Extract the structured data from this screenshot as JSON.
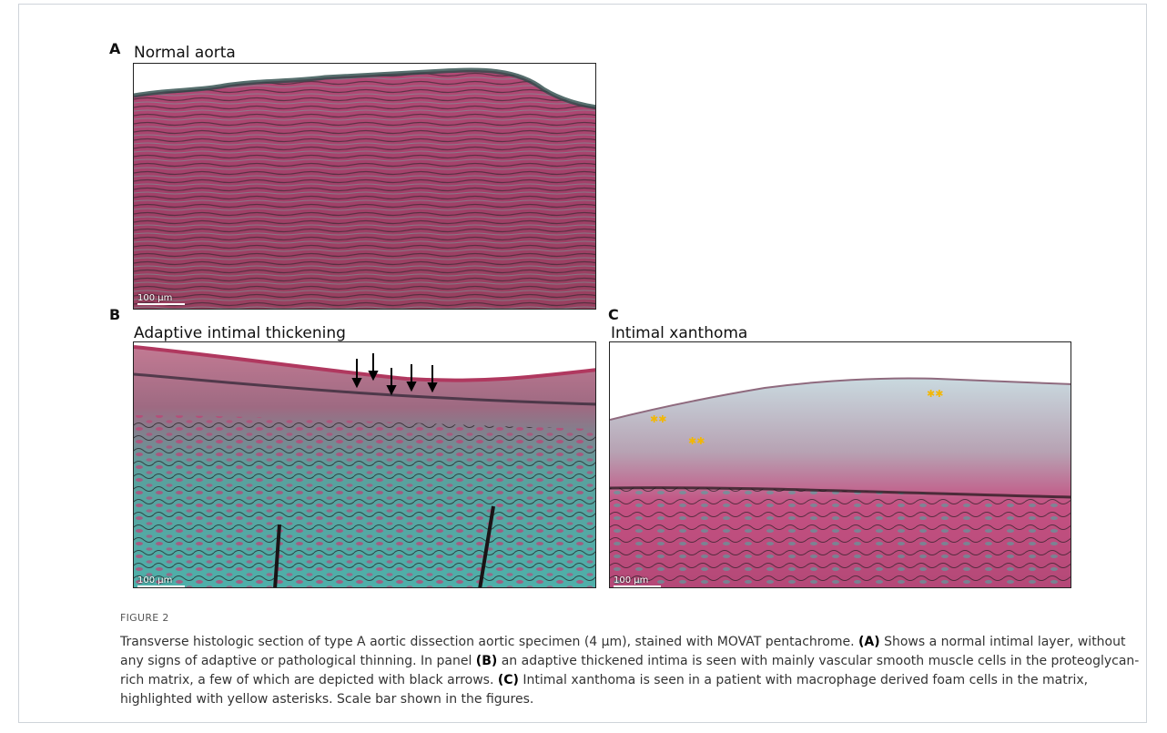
{
  "panels": {
    "a": {
      "letter": "A",
      "title": "Normal aorta",
      "scale": "100 μm"
    },
    "b": {
      "letter": "B",
      "title": "Adaptive intimal thickening",
      "scale": "100 μm"
    },
    "c": {
      "letter": "C",
      "title": "Intimal xanthoma",
      "scale": "100 μm"
    }
  },
  "figure": {
    "label": "FIGURE 2",
    "caption_intro": "Transverse histologic section of type A aortic dissection aortic specimen (4 μm), stained with MOVAT pentachrome. ",
    "ref_a": "(A)",
    "text_a": " Shows a normal intimal layer, without any signs of adaptive or pathological thinning. In panel ",
    "ref_b": "(B)",
    "text_b": " an adaptive thickened intima is seen with mainly vascular smooth muscle cells in the proteoglycan-rich matrix, a few of which are depicted with black arrows. ",
    "ref_c": "(C)",
    "text_c": " Intimal xanthoma is seen in a patient with macrophage derived foam cells in the matrix, highlighted with yellow asterisks. Scale bar shown in the figures."
  },
  "colors": {
    "tissue_pink": "#c24577",
    "tissue_teal": "#4fa6a2",
    "elastin_black": "#1a1416",
    "asterisk_yellow": "#f2b705"
  }
}
